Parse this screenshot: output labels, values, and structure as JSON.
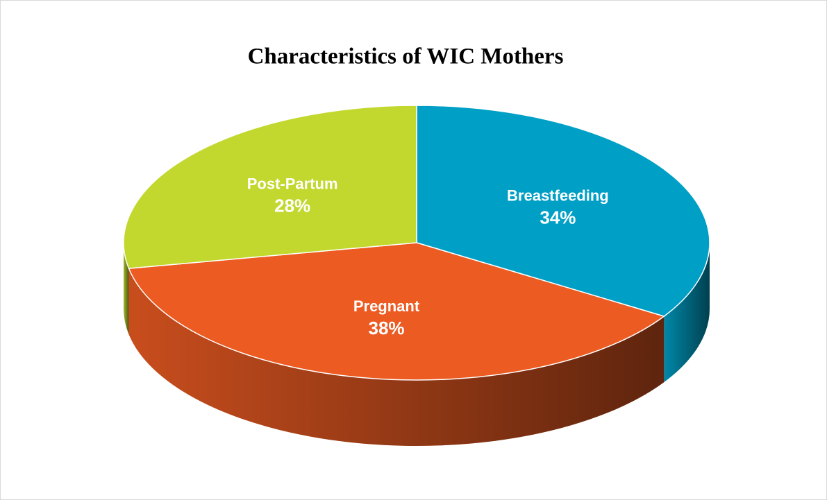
{
  "chart_data": {
    "type": "pie3d",
    "title": "Characteristics of WIC Mothers",
    "categories": [
      "Breastfeeding",
      "Pregnant",
      "Post-Partum"
    ],
    "values": [
      34,
      38,
      28
    ],
    "value_labels": [
      "34%",
      "38%",
      "28%"
    ],
    "colors": [
      "#00a0c6",
      "#ec5b22",
      "#c2d82e"
    ]
  }
}
